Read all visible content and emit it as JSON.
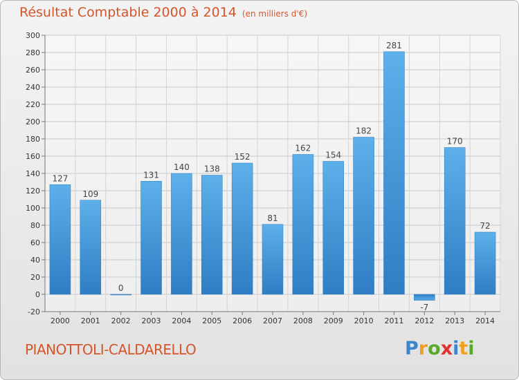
{
  "header": {
    "title": "Résultat Comptable 2000 à 2014",
    "unit": "(en milliers d'€)"
  },
  "footer": {
    "commune": "PIANOTTOLI-CALDARELLO",
    "logo": {
      "letters": [
        "P",
        "r",
        "o",
        "x",
        "i",
        "t",
        "i"
      ],
      "colors": [
        "#3a86c8",
        "#f0a020",
        "#5aaa2a",
        "#e03030",
        "#3a86c8",
        "#f0a020",
        "#5aaa2a"
      ]
    }
  },
  "chart_data": {
    "type": "bar",
    "title": "Résultat Comptable 2000 à 2014",
    "subtitle": "(en milliers d'€)",
    "categories": [
      "2000",
      "2001",
      "2002",
      "2003",
      "2004",
      "2005",
      "2006",
      "2007",
      "2008",
      "2009",
      "2010",
      "2011",
      "2012",
      "2013",
      "2014"
    ],
    "values": [
      127,
      109,
      0,
      131,
      140,
      138,
      152,
      81,
      162,
      154,
      182,
      281,
      -7,
      170,
      72
    ],
    "ylim": [
      -20,
      300
    ],
    "yticks": [
      -20,
      0,
      20,
      40,
      60,
      80,
      100,
      120,
      140,
      160,
      180,
      200,
      220,
      240,
      260,
      280,
      300
    ],
    "grid": true,
    "bar_color": "#3a8fd8",
    "bar_color_light": "#5db0ea"
  }
}
